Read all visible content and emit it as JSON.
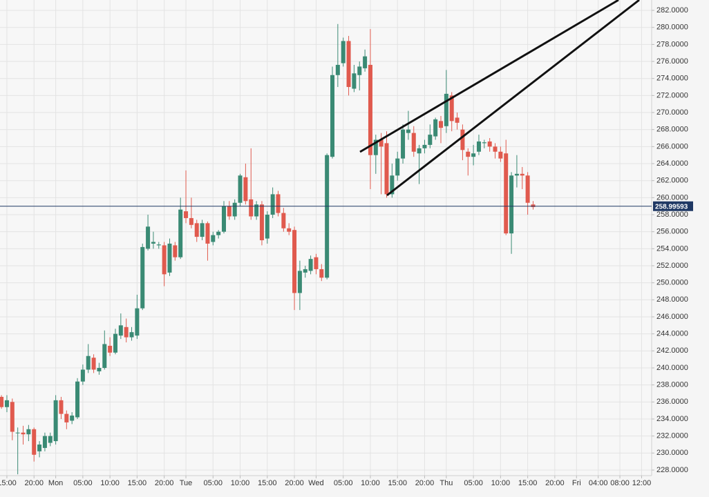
{
  "chart_data": {
    "type": "candlestick",
    "up_color": "#3a8a74",
    "down_color": "#e05a4e",
    "last_price_color": "#1f3864",
    "last_price": 258.99593,
    "xlim": [
      -1.27,
      118.85
    ],
    "ylim": [
      227.35,
      283.22
    ],
    "grid": true,
    "xticks": [
      {
        "value": 0,
        "label": "15:00"
      },
      {
        "value": 5,
        "label": "20:00"
      },
      {
        "value": 9,
        "label": "Mon"
      },
      {
        "value": 14,
        "label": "05:00"
      },
      {
        "value": 19,
        "label": "10:00"
      },
      {
        "value": 24,
        "label": "15:00"
      },
      {
        "value": 29,
        "label": "20:00"
      },
      {
        "value": 33,
        "label": "Tue"
      },
      {
        "value": 38,
        "label": "05:00"
      },
      {
        "value": 43,
        "label": "10:00"
      },
      {
        "value": 48,
        "label": "15:00"
      },
      {
        "value": 53,
        "label": "20:00"
      },
      {
        "value": 57,
        "label": "Wed"
      },
      {
        "value": 62,
        "label": "05:00"
      },
      {
        "value": 67,
        "label": "10:00"
      },
      {
        "value": 72,
        "label": "15:00"
      },
      {
        "value": 77,
        "label": "20:00"
      },
      {
        "value": 81,
        "label": "Thu"
      },
      {
        "value": 86,
        "label": "05:00"
      },
      {
        "value": 91,
        "label": "10:00"
      },
      {
        "value": 96,
        "label": "15:00"
      },
      {
        "value": 101,
        "label": "20:00"
      },
      {
        "value": 105,
        "label": "Fri"
      },
      {
        "value": 109,
        "label": "04:00"
      },
      {
        "value": 113,
        "label": "08:00"
      },
      {
        "value": 117,
        "label": "12:00"
      }
    ],
    "yticks": [
      {
        "value": 228,
        "label": "228.0000"
      },
      {
        "value": 230,
        "label": "230.0000"
      },
      {
        "value": 232,
        "label": "232.0000"
      },
      {
        "value": 234,
        "label": "234.0000"
      },
      {
        "value": 236,
        "label": "236.0000"
      },
      {
        "value": 238,
        "label": "238.0000"
      },
      {
        "value": 240,
        "label": "240.0000"
      },
      {
        "value": 242,
        "label": "242.0000"
      },
      {
        "value": 244,
        "label": "244.0000"
      },
      {
        "value": 246,
        "label": "246.0000"
      },
      {
        "value": 248,
        "label": "248.0000"
      },
      {
        "value": 250,
        "label": "250.0000"
      },
      {
        "value": 252,
        "label": "252.0000"
      },
      {
        "value": 254,
        "label": "254.0000"
      },
      {
        "value": 256,
        "label": "256.0000"
      },
      {
        "value": 258,
        "label": "258.0000"
      },
      {
        "value": 260,
        "label": "260.0000"
      },
      {
        "value": 262,
        "label": "262.0000"
      },
      {
        "value": 264,
        "label": "264.0000"
      },
      {
        "value": 266,
        "label": "266.0000"
      },
      {
        "value": 268,
        "label": "268.0000"
      },
      {
        "value": 270,
        "label": "270.0000"
      },
      {
        "value": 272,
        "label": "272.0000"
      },
      {
        "value": 274,
        "label": "274.0000"
      },
      {
        "value": 276,
        "label": "276.0000"
      },
      {
        "value": 278,
        "label": "278.0000"
      },
      {
        "value": 280,
        "label": "280.0000"
      },
      {
        "value": 282,
        "label": "282.0000"
      }
    ],
    "x": [
      -1,
      0,
      1,
      2,
      3,
      4,
      5,
      6,
      7,
      8,
      9,
      10,
      11,
      12,
      13,
      14,
      15,
      16,
      17,
      18,
      19,
      20,
      21,
      22,
      23,
      24,
      25,
      26,
      27,
      28,
      29,
      30,
      31,
      32,
      33,
      34,
      35,
      36,
      37,
      38,
      39,
      40,
      41,
      42,
      43,
      44,
      45,
      46,
      47,
      48,
      49,
      50,
      51,
      52,
      53,
      54,
      55,
      56,
      57,
      58,
      59,
      60,
      61,
      62,
      63,
      64,
      65,
      66,
      67,
      68,
      69,
      70,
      71,
      72,
      73,
      74,
      75,
      76,
      77,
      78,
      79,
      80,
      81,
      82,
      83,
      84,
      85,
      86,
      87,
      88,
      89,
      90,
      91,
      92,
      93,
      94,
      95,
      96,
      97
    ],
    "open": [
      236.6,
      235.4,
      236.0,
      232.4,
      232.4,
      232.2,
      232.8,
      230.2,
      230.6,
      231.2,
      231.4,
      236.2,
      234.6,
      233.8,
      234.2,
      238.4,
      239.8,
      241.2,
      239.6,
      240.0,
      242.6,
      241.8,
      243.8,
      244.8,
      243.6,
      243.8,
      247.0,
      254.0,
      254.6,
      254.4,
      254.4,
      251.2,
      254.4,
      253.0,
      258.4,
      257.6,
      257.0,
      255.4,
      257.0,
      254.8,
      255.6,
      256.0,
      259.0,
      257.8,
      259.4,
      262.4,
      259.8,
      257.8,
      259.2,
      255.2,
      258.0,
      260.4,
      258.2,
      256.4,
      256.2,
      248.8,
      251.2,
      251.4,
      253.0,
      251.6,
      250.6,
      264.8,
      274.4,
      275.8,
      278.4,
      272.8,
      274.4,
      275.2,
      275.6,
      265.0,
      266.8,
      266.4,
      260.4,
      262.6,
      264.6,
      267.6,
      267.6,
      265.2,
      265.8,
      266.2,
      267.2,
      269.0,
      268.4,
      272.0,
      269.4,
      268.0,
      265.4,
      264.8,
      265.4,
      266.4,
      266.6,
      266.0,
      265.4,
      265.2,
      255.8,
      262.6,
      262.8,
      262.6,
      259.2
    ],
    "high": [
      236.8,
      236.8,
      236.4,
      233.0,
      233.2,
      233.3,
      233.0,
      231.4,
      232.4,
      232.4,
      236.8,
      236.6,
      235.0,
      234.8,
      238.8,
      240.4,
      242.8,
      241.6,
      240.6,
      244.4,
      243.6,
      244.6,
      246.4,
      245.8,
      244.8,
      248.6,
      254.6,
      258.0,
      256.0,
      254.8,
      254.8,
      255.2,
      254.8,
      260.0,
      263.2,
      260.0,
      257.4,
      257.4,
      257.2,
      256.0,
      256.2,
      259.6,
      259.6,
      259.8,
      262.8,
      264.0,
      265.8,
      259.6,
      259.6,
      258.4,
      261.2,
      260.8,
      258.8,
      257.0,
      256.6,
      252.6,
      252.0,
      253.2,
      253.4,
      252.2,
      265.2,
      275.4,
      280.4,
      278.8,
      279.0,
      275.6,
      276.0,
      277.4,
      279.8,
      267.4,
      267.6,
      267.8,
      264.0,
      265.4,
      268.6,
      270.2,
      268.4,
      266.2,
      266.8,
      268.6,
      269.4,
      269.6,
      275.0,
      272.4,
      270.0,
      268.6,
      265.8,
      266.2,
      267.4,
      266.8,
      267.0,
      266.4,
      266.0,
      266.8,
      263.0,
      265.0,
      263.6,
      263.0,
      259.6
    ],
    "low": [
      235.2,
      234.8,
      231.5,
      227.5,
      231.0,
      231.4,
      229.0,
      229.5,
      230.2,
      230.8,
      231.0,
      234.0,
      232.8,
      233.4,
      234.0,
      238.0,
      239.4,
      239.4,
      239.2,
      239.8,
      241.4,
      241.6,
      243.4,
      243.0,
      243.2,
      243.4,
      246.8,
      253.8,
      254.0,
      254.0,
      249.6,
      250.8,
      252.6,
      252.8,
      257.0,
      256.4,
      254.8,
      255.0,
      252.6,
      254.4,
      255.2,
      255.8,
      257.4,
      257.4,
      259.0,
      259.2,
      257.4,
      257.4,
      254.4,
      254.6,
      257.6,
      257.8,
      256.0,
      255.6,
      246.8,
      246.8,
      250.6,
      251.0,
      251.0,
      250.2,
      250.4,
      264.6,
      273.0,
      275.4,
      272.0,
      272.4,
      272.6,
      274.8,
      261.0,
      262.8,
      260.4,
      260.0,
      260.0,
      262.0,
      264.0,
      266.8,
      264.8,
      261.6,
      265.2,
      265.8,
      266.8,
      266.4,
      267.6,
      267.8,
      268.0,
      264.4,
      262.6,
      263.8,
      265.0,
      265.8,
      265.4,
      264.6,
      264.2,
      255.6,
      253.4,
      261.2,
      261.0,
      258.0,
      258.6
    ],
    "close": [
      235.4,
      236.2,
      232.5,
      232.4,
      232.2,
      232.8,
      229.8,
      231.0,
      232.0,
      232.0,
      236.2,
      234.6,
      233.6,
      234.4,
      238.4,
      239.8,
      241.4,
      239.8,
      240.0,
      242.8,
      241.8,
      244.0,
      245.0,
      243.6,
      244.2,
      247.0,
      254.2,
      256.6,
      254.8,
      254.5,
      251.0,
      254.6,
      253.0,
      258.6,
      257.6,
      256.8,
      255.4,
      257.0,
      254.6,
      255.6,
      256.0,
      259.0,
      257.8,
      259.4,
      262.6,
      259.6,
      257.8,
      259.2,
      255.0,
      258.0,
      260.4,
      258.2,
      256.4,
      256.0,
      248.8,
      251.4,
      251.6,
      252.8,
      251.6,
      250.6,
      265.0,
      274.4,
      275.6,
      278.4,
      273.0,
      274.6,
      275.4,
      276.6,
      265.0,
      266.8,
      266.0,
      260.4,
      262.6,
      264.6,
      268.0,
      268.0,
      265.4,
      265.8,
      266.2,
      267.4,
      269.2,
      268.2,
      272.2,
      269.0,
      268.8,
      265.6,
      264.8,
      265.2,
      266.6,
      266.5,
      266.0,
      265.4,
      264.6,
      255.8,
      262.6,
      262.8,
      262.6,
      259.4,
      258.9
    ]
  }
}
